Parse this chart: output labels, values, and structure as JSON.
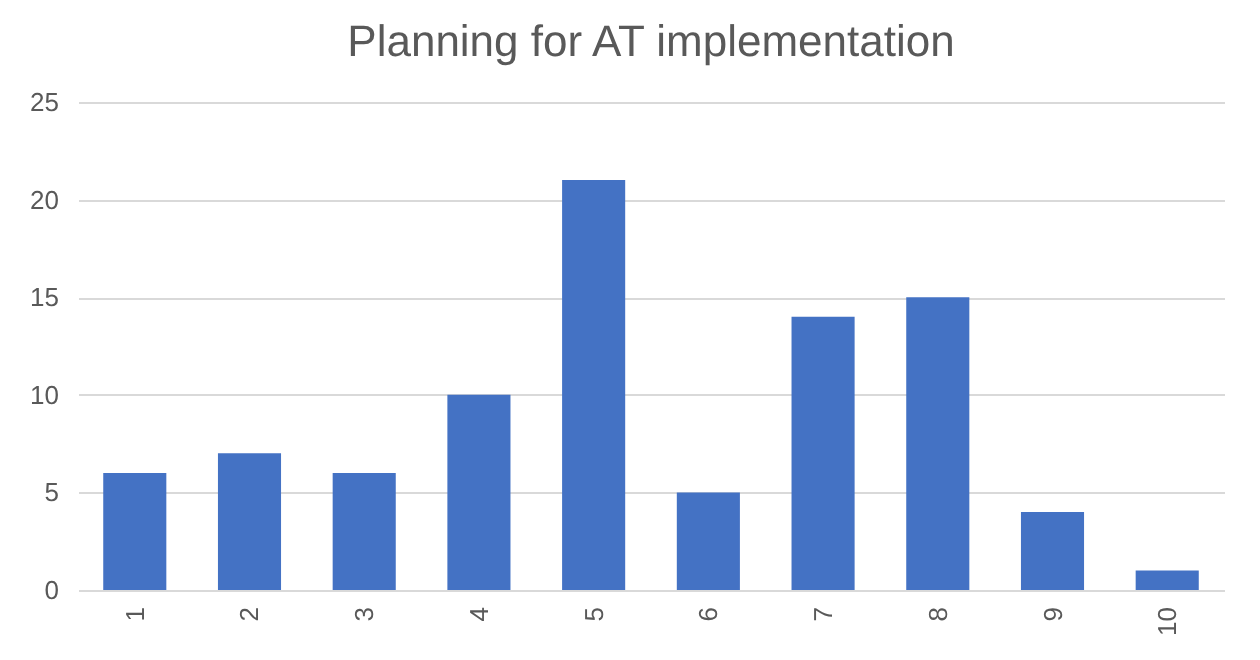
{
  "chart_data": {
    "type": "bar",
    "title": "Planning for AT implementation",
    "categories": [
      "1",
      "2",
      "3",
      "4",
      "5",
      "6",
      "7",
      "8",
      "9",
      "10"
    ],
    "values": [
      6,
      7,
      6,
      10,
      21,
      5,
      14,
      15,
      4,
      1
    ],
    "color": "#4472c4",
    "ylim": [
      0,
      25
    ],
    "yticks": [
      0,
      5,
      10,
      15,
      20,
      25
    ],
    "grid": "y"
  }
}
